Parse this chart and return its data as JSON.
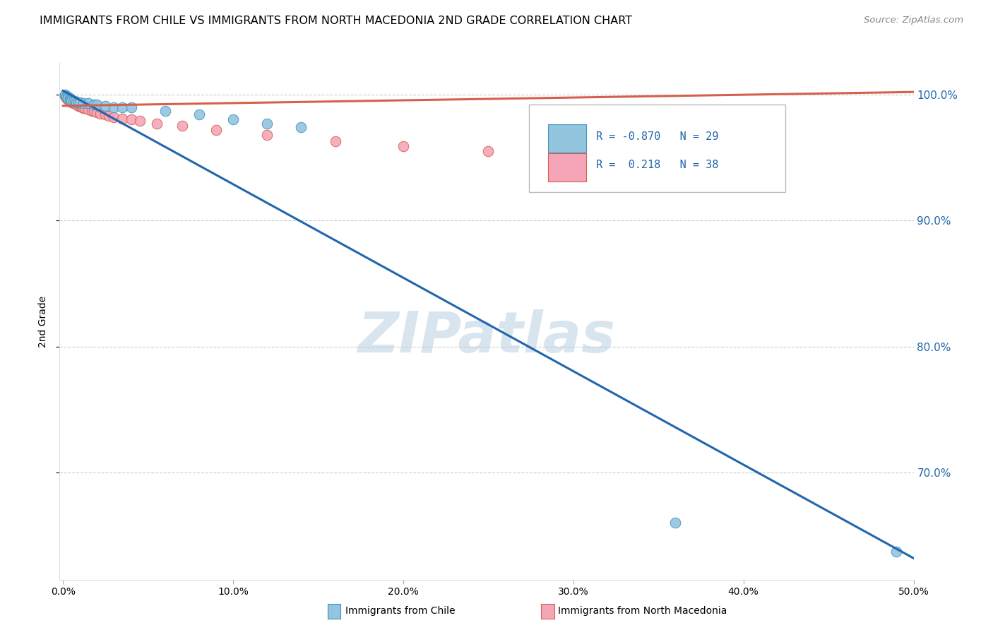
{
  "title": "IMMIGRANTS FROM CHILE VS IMMIGRANTS FROM NORTH MACEDONIA 2ND GRADE CORRELATION CHART",
  "source": "Source: ZipAtlas.com",
  "ylabel": "2nd Grade",
  "xlim": [
    0.0,
    0.5
  ],
  "ylim": [
    0.615,
    1.025
  ],
  "yticks": [
    0.7,
    0.8,
    0.9,
    1.0
  ],
  "ytick_labels": [
    "70.0%",
    "80.0%",
    "90.0%",
    "100.0%"
  ],
  "xticks": [
    0.0,
    0.1,
    0.2,
    0.3,
    0.4,
    0.5
  ],
  "xtick_labels": [
    "0.0%",
    "10.0%",
    "20.0%",
    "30.0%",
    "40.0%",
    "50.0%"
  ],
  "legend_r_blue": "-0.870",
  "legend_n_blue": "29",
  "legend_r_pink": " 0.218",
  "legend_n_pink": "38",
  "blue_color": "#92c5de",
  "blue_edge_color": "#4393c3",
  "blue_line_color": "#2166ac",
  "pink_color": "#f4a6b8",
  "pink_edge_color": "#d6604d",
  "pink_line_color": "#d6604d",
  "watermark": "ZIPatlas",
  "blue_scatter_x": [
    0.001,
    0.002,
    0.002,
    0.003,
    0.003,
    0.004,
    0.004,
    0.005,
    0.005,
    0.006,
    0.007,
    0.008,
    0.009,
    0.01,
    0.012,
    0.015,
    0.018,
    0.02,
    0.025,
    0.03,
    0.035,
    0.04,
    0.06,
    0.08,
    0.1,
    0.12,
    0.14,
    0.36,
    0.49
  ],
  "blue_scatter_y": [
    1.0,
    0.999,
    0.998,
    0.998,
    0.997,
    0.997,
    0.996,
    0.996,
    0.995,
    0.995,
    0.995,
    0.994,
    0.994,
    0.994,
    0.993,
    0.993,
    0.992,
    0.992,
    0.991,
    0.99,
    0.99,
    0.99,
    0.987,
    0.984,
    0.98,
    0.977,
    0.974,
    0.66,
    0.637
  ],
  "pink_scatter_x": [
    0.001,
    0.002,
    0.002,
    0.003,
    0.003,
    0.004,
    0.004,
    0.005,
    0.005,
    0.006,
    0.006,
    0.007,
    0.008,
    0.009,
    0.01,
    0.011,
    0.012,
    0.013,
    0.015,
    0.017,
    0.018,
    0.02,
    0.022,
    0.025,
    0.027,
    0.03,
    0.035,
    0.04,
    0.045,
    0.055,
    0.07,
    0.09,
    0.12,
    0.16,
    0.2,
    0.25,
    0.3,
    0.38
  ],
  "pink_scatter_y": [
    0.999,
    0.998,
    0.997,
    0.997,
    0.996,
    0.996,
    0.995,
    0.995,
    0.994,
    0.994,
    0.993,
    0.993,
    0.992,
    0.991,
    0.991,
    0.99,
    0.989,
    0.989,
    0.988,
    0.987,
    0.987,
    0.986,
    0.985,
    0.984,
    0.983,
    0.982,
    0.981,
    0.98,
    0.979,
    0.977,
    0.975,
    0.972,
    0.968,
    0.963,
    0.959,
    0.955,
    0.951,
    0.945
  ],
  "blue_trendline_x": [
    0.0,
    0.5
  ],
  "blue_trendline_y": [
    1.003,
    0.632
  ],
  "pink_trendline_x": [
    0.0,
    0.5
  ],
  "pink_trendline_y": [
    0.991,
    1.002
  ],
  "grid_color": "#cccccc",
  "grid_style": "--",
  "background_color": "#ffffff"
}
